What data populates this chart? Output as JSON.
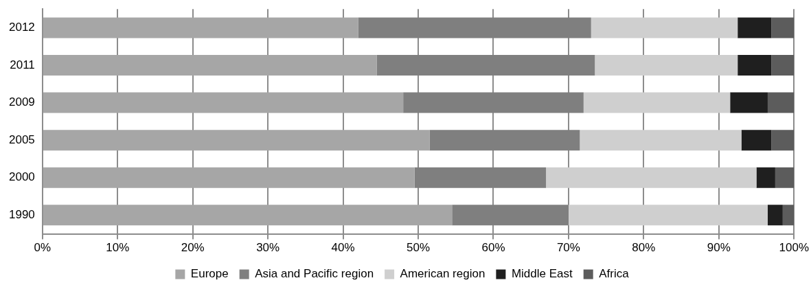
{
  "chart_data": {
    "type": "bar",
    "orientation": "horizontal",
    "stacked": true,
    "categories": [
      "2012",
      "2011",
      "2009",
      "2005",
      "2000",
      "1990"
    ],
    "series": [
      {
        "name": "Europe",
        "color": "#a6a6a6",
        "values": [
          42,
          44.5,
          48,
          51.5,
          49.5,
          54.5
        ]
      },
      {
        "name": "Asia and Pacific region",
        "color": "#7f7f7f",
        "values": [
          31,
          29,
          24,
          20,
          17.5,
          15.5
        ]
      },
      {
        "name": "American region",
        "color": "#cfcfcf",
        "values": [
          19.5,
          19,
          19.5,
          21.5,
          28,
          26.5
        ]
      },
      {
        "name": "Middle East",
        "color": "#1f1f1f",
        "values": [
          4.5,
          4.5,
          5,
          4,
          2.5,
          2
        ]
      },
      {
        "name": "Africa",
        "color": "#5c5c5c",
        "values": [
          3,
          3,
          3.5,
          3,
          2.5,
          1.5
        ]
      }
    ],
    "xlim": [
      0,
      100
    ],
    "xticks": [
      {
        "value": 0,
        "label": "0%"
      },
      {
        "value": 10,
        "label": "10%"
      },
      {
        "value": 20,
        "label": "20%"
      },
      {
        "value": 30,
        "label": "30%"
      },
      {
        "value": 40,
        "label": "40%"
      },
      {
        "value": 50,
        "label": "50%"
      },
      {
        "value": 60,
        "label": "60%"
      },
      {
        "value": 70,
        "label": "70%"
      },
      {
        "value": 80,
        "label": "80%"
      },
      {
        "value": 90,
        "label": "90%"
      },
      {
        "value": 100,
        "label": "100%"
      }
    ],
    "grid": "x",
    "legend": "bottom"
  }
}
